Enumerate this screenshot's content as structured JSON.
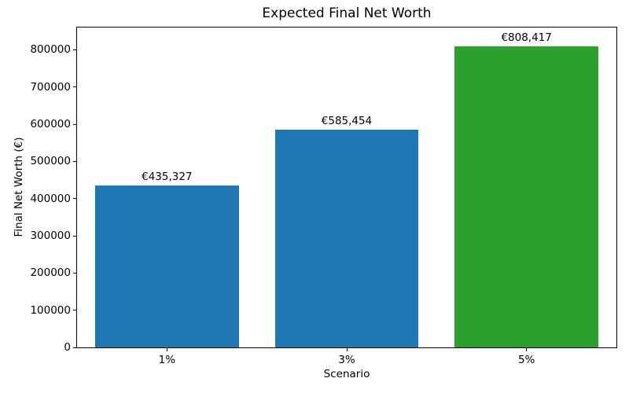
{
  "chart_data": {
    "type": "bar",
    "title": "Expected Final Net Worth",
    "xlabel": "Scenario",
    "ylabel": "Final Net Worth (€)",
    "categories": [
      "1%",
      "3%",
      "5%"
    ],
    "values": [
      435327,
      585454,
      808417
    ],
    "bar_labels": [
      "€435,327",
      "€585,454",
      "€808,417"
    ],
    "bar_colors": [
      "#1f77b4",
      "#1f77b4",
      "#2ca02c"
    ],
    "ylim": [
      0,
      860000
    ],
    "yticks": [
      0,
      100000,
      200000,
      300000,
      400000,
      500000,
      600000,
      700000,
      800000
    ],
    "bar_width_fraction": 0.8,
    "grid": false,
    "legend": "none",
    "colors": {
      "bar_blue": "#1f77b4",
      "bar_green": "#2ca02c",
      "text": "#000000",
      "background": "#ffffff",
      "spine": "#000000"
    }
  }
}
